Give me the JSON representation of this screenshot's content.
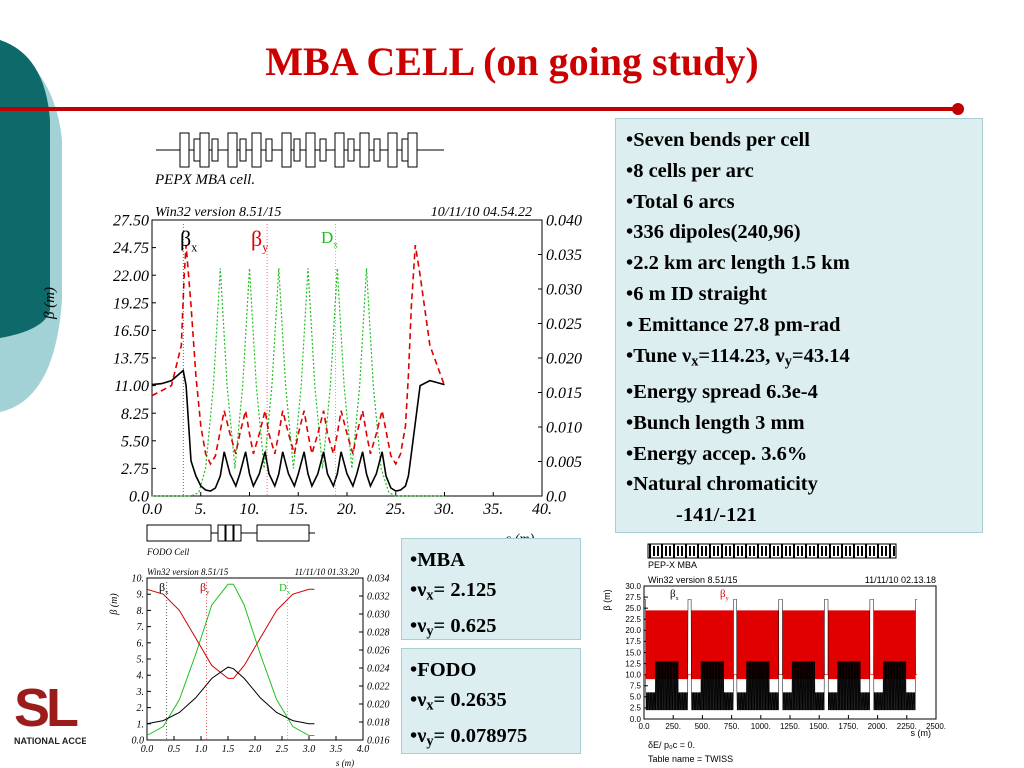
{
  "slide": {
    "title": "MBA CELL (on going study)",
    "colors": {
      "title": "#cc0000",
      "teal": "#0e6a6a",
      "light_teal": "#a3d2d6",
      "box": "#dceef0",
      "rule": "#c00000"
    }
  },
  "right_box": {
    "items": [
      "Seven bends per cell",
      "8 cells per arc",
      "Total 6 arcs",
      "336 dipoles(240,96)",
      "2.2 km arc length 1.5 km",
      "6 m ID straight",
      " Emittance 27.8 pm-rad"
    ],
    "tune": {
      "prefix": "Tune ",
      "nu": "ν",
      "x_sub": "x",
      "x_val": "=114.23, ",
      "y_sub": "y",
      "y_val": "=43.14"
    },
    "items2": [
      "Energy spread  6.3e-4",
      "Bunch length 3 mm",
      "Energy accep. 3.6%",
      "Natural chromaticity"
    ],
    "chromaticity_value": "-141/-121"
  },
  "mba_box": {
    "label": "MBA",
    "nu": "ν",
    "x_sub": "x",
    "x_val": "= 2.125",
    "y_sub": "y",
    "y_val": "= 0.625"
  },
  "fodo_box": {
    "label": "FODO",
    "nu": "ν",
    "x_sub": "x",
    "x_val": "= 0.2635",
    "y_sub": "y",
    "y_val": "= 0.078975"
  },
  "logo": {
    "letters": "SL",
    "caption": "NATIONAL ACCE"
  },
  "chart_data": [
    {
      "type": "line",
      "name": "pepx-mba-cell",
      "title": "PEPX MBA cell.",
      "header_left": "Win32 version 8.51/15",
      "header_right": "10/11/10  04.54.22",
      "xlabel": "s (m)",
      "ylabel": "β (m)",
      "xlim": [
        0,
        40
      ],
      "ylim": [
        0,
        27.5
      ],
      "y2lim": [
        0,
        0.04
      ],
      "x_ticks": [
        "0.0",
        "5.",
        "10.",
        "15.",
        "20.",
        "25.",
        "30.",
        "35.",
        "40."
      ],
      "y_ticks": [
        "0.0",
        "2.75",
        "5.50",
        "8.25",
        "11.00",
        "13.75",
        "16.50",
        "19.25",
        "22.00",
        "24.75",
        "27.50"
      ],
      "y2_ticks": [
        "0.0",
        "0.005",
        "0.010",
        "0.015",
        "0.020",
        "0.025",
        "0.030",
        "0.035",
        "0.040"
      ],
      "legend": {
        "bx": "β",
        "bx_sub": "x",
        "by": "β",
        "by_sub": "y",
        "dx": "D",
        "dx_sub": "x"
      },
      "series_colors": {
        "bx": "#000000",
        "by": "#e00000",
        "dx": "#20c020"
      },
      "series": {
        "bx": {
          "x": [
            0,
            1,
            2,
            3.2,
            3.5,
            4,
            4.5,
            5,
            5.5,
            6,
            6.5,
            7,
            7.4,
            8,
            8.6,
            9,
            9.6,
            10,
            10.4,
            11,
            11.6,
            12,
            12.6,
            13,
            13.4,
            14,
            14.6,
            15,
            15.6,
            16,
            16.4,
            17,
            17.6,
            18,
            18.6,
            19,
            19.4,
            20,
            20.6,
            21,
            21.6,
            22,
            22.4,
            23,
            23.6,
            24,
            24.5,
            25,
            25.5,
            26,
            26.3,
            26.5,
            27.5,
            28.5,
            30
          ],
          "y": [
            11.1,
            11.2,
            11.5,
            12.5,
            11,
            3.5,
            2,
            1,
            0.6,
            0.5,
            0.8,
            2,
            4.4,
            2.2,
            1,
            2.2,
            4.4,
            2.2,
            1,
            2.2,
            4.4,
            2.2,
            1,
            2.2,
            4.4,
            2.2,
            1,
            2.2,
            4.4,
            2.2,
            1,
            2.2,
            4.4,
            2.2,
            1,
            2.2,
            4.4,
            2.2,
            1,
            2.2,
            4.4,
            2.2,
            1,
            2.2,
            4.4,
            2,
            0.8,
            0.5,
            0.6,
            1,
            2,
            3.5,
            11,
            11.5,
            11.1
          ]
        },
        "by": {
          "x": [
            0,
            1,
            2,
            3,
            3.3,
            3.5,
            4,
            4.5,
            5,
            5.5,
            6,
            6.5,
            7,
            7.4,
            8,
            8.6,
            9,
            9.6,
            10,
            10.4,
            11,
            11.6,
            12,
            12.6,
            13,
            13.4,
            14,
            14.6,
            15,
            15.6,
            16,
            16.4,
            17,
            17.6,
            18,
            18.6,
            19,
            19.4,
            20,
            20.6,
            21,
            21.6,
            22,
            22.4,
            23,
            23.6,
            24,
            24.5,
            25,
            25.5,
            26,
            26.3,
            26.6,
            27,
            27.5,
            28.5,
            30
          ],
          "y": [
            10,
            10.5,
            11,
            15,
            22,
            25,
            19,
            12,
            7,
            4.2,
            3.2,
            4,
            6.5,
            8.5,
            6.2,
            4.2,
            6.2,
            8.5,
            6.2,
            4.2,
            6.2,
            8.5,
            6.2,
            4.2,
            6.2,
            8.5,
            6.2,
            4.2,
            6.2,
            8.5,
            6.2,
            4.2,
            6.2,
            8.5,
            6.2,
            4.2,
            6.2,
            8.5,
            6.2,
            4.2,
            6.2,
            8.5,
            6.2,
            4.2,
            6.2,
            8.5,
            6.5,
            4,
            3.2,
            4.2,
            7,
            12,
            19,
            25,
            22,
            15,
            11
          ]
        },
        "dx": {
          "x": [
            0,
            4,
            4.8,
            5.5,
            6.3,
            7,
            7.7,
            8.5,
            9.3,
            10,
            10.7,
            11.5,
            12.3,
            13,
            13.7,
            14.5,
            15.3,
            16,
            16.7,
            17.5,
            18.3,
            19,
            19.7,
            20.5,
            21.3,
            22,
            22.7,
            23.5,
            24.3,
            25,
            25.8,
            26.5,
            30
          ],
          "y": [
            0,
            0,
            0.0005,
            0.004,
            0.016,
            0.033,
            0.016,
            0.004,
            0.016,
            0.033,
            0.016,
            0.004,
            0.016,
            0.033,
            0.016,
            0.004,
            0.016,
            0.033,
            0.016,
            0.004,
            0.016,
            0.033,
            0.016,
            0.004,
            0.016,
            0.033,
            0.016,
            0.004,
            0.0005,
            0,
            0,
            0,
            0
          ]
        }
      }
    },
    {
      "type": "line",
      "name": "fodo-cell",
      "title": "FODO Cell",
      "header_left": "Win32 version 8.51/15",
      "header_right": "11/11/10  01.33.20",
      "xlabel": "s (m)",
      "ylabel": "β (m)",
      "xlim": [
        0,
        4
      ],
      "ylim": [
        0,
        10
      ],
      "y2lim": [
        0.016,
        0.034
      ],
      "x_ticks": [
        "0.0",
        "0.5",
        "1.0",
        "1.5",
        "2.0",
        "2.5",
        "3.0",
        "3.5",
        "4.0"
      ],
      "y_ticks": [
        "0.0",
        "1.",
        "2.",
        "3.",
        "4.",
        "5.",
        "6.",
        "7.",
        "8.",
        "9.",
        "10."
      ],
      "y2_ticks": [
        "0.016",
        "0.018",
        "0.020",
        "0.022",
        "0.024",
        "0.026",
        "0.028",
        "0.030",
        "0.032",
        "0.034"
      ],
      "legend": {
        "bx": "β",
        "bx_sub": "x",
        "by": "β",
        "by_sub": "y",
        "dx": "D",
        "dx_sub": "x"
      },
      "series_colors": {
        "bx": "#000000",
        "by": "#d00000",
        "dx": "#20c020"
      },
      "series": {
        "bx": {
          "x": [
            0,
            0.3,
            0.6,
            0.9,
            1.2,
            1.5,
            1.6,
            1.8,
            2.1,
            2.4,
            2.7,
            3.0,
            3.1
          ],
          "y": [
            1.0,
            1.2,
            1.7,
            2.6,
            3.8,
            4.5,
            4.4,
            3.8,
            2.6,
            1.7,
            1.2,
            1.0,
            1.0
          ]
        },
        "by": {
          "x": [
            0,
            0.3,
            0.6,
            0.9,
            1.2,
            1.5,
            1.6,
            1.8,
            2.1,
            2.4,
            2.7,
            3.0,
            3.1
          ],
          "y": [
            9.3,
            9.0,
            8.0,
            6.3,
            4.6,
            3.8,
            3.8,
            4.6,
            6.3,
            8.0,
            9.0,
            9.3,
            9.3
          ]
        },
        "dx": {
          "x": [
            0,
            0.3,
            0.6,
            0.9,
            1.2,
            1.5,
            1.6,
            1.8,
            2.1,
            2.4,
            2.7,
            3.0,
            3.1
          ],
          "y": [
            0.0165,
            0.0175,
            0.0205,
            0.0255,
            0.031,
            0.0333,
            0.0333,
            0.031,
            0.0255,
            0.0205,
            0.0175,
            0.0165,
            0.0165
          ]
        }
      }
    },
    {
      "type": "line",
      "name": "pep-x-mba-ring",
      "title": "PEP-X MBA",
      "header_left": "Win32 version 8.51/15",
      "header_right": "11/11/10  02.13.18",
      "xlabel": "s (m)",
      "ylabel": "β (m)",
      "xlim": [
        0,
        2500
      ],
      "ylim": [
        0,
        30
      ],
      "x_ticks": [
        "0.0",
        "250.",
        "500.",
        "750.",
        "1000.",
        "1250.",
        "1500.",
        "1750.",
        "2000.",
        "2250.",
        "2500."
      ],
      "y_ticks": [
        "0.0",
        "2.5",
        "5.0",
        "7.5",
        "10.0",
        "12.5",
        "15.0",
        "17.5",
        "20.0",
        "22.5",
        "25.0",
        "27.5",
        "30.0"
      ],
      "legend": {
        "bx": "β",
        "bx_sub": "x",
        "by": "β",
        "by_sub": "y"
      },
      "series_colors": {
        "bx": "#000000",
        "by": "#e00000"
      },
      "footer_1": "δE/ p₀c  =   0.",
      "footer_2": "Table name = TWISS"
    }
  ]
}
